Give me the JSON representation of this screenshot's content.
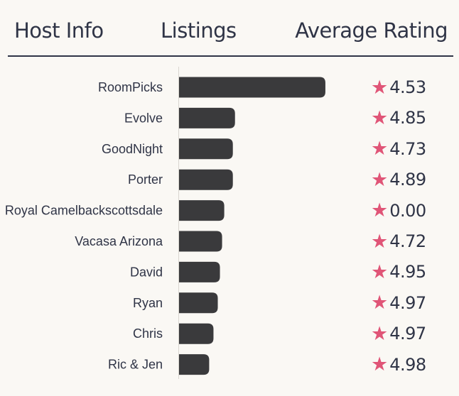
{
  "header": {
    "host_info": "Host Info",
    "listings": "Listings",
    "average_rating": "Average Rating"
  },
  "colors": {
    "bar": "#3a3a3c",
    "star": "#e05577",
    "text": "#2f3446",
    "background": "#faf8f4"
  },
  "star_icon": "star-icon",
  "chart_data": {
    "type": "bar",
    "orientation": "horizontal",
    "categories": [
      "RoomPicks",
      "Evolve",
      "GoodNight",
      "Porter",
      "Royal Camelbackscottsdale",
      "Vacasa Arizona",
      "David",
      "Ryan",
      "Chris",
      "Ric & Jen"
    ],
    "values": [
      68,
      26,
      25,
      25,
      21,
      20,
      19,
      18,
      16,
      14
    ],
    "ratings": [
      "4.53",
      "4.85",
      "4.73",
      "4.89",
      "0.00",
      "4.72",
      "4.95",
      "4.97",
      "4.97",
      "4.98"
    ],
    "xlim": [
      0,
      70
    ],
    "grid": false,
    "xlabel": "",
    "ylabel": ""
  }
}
